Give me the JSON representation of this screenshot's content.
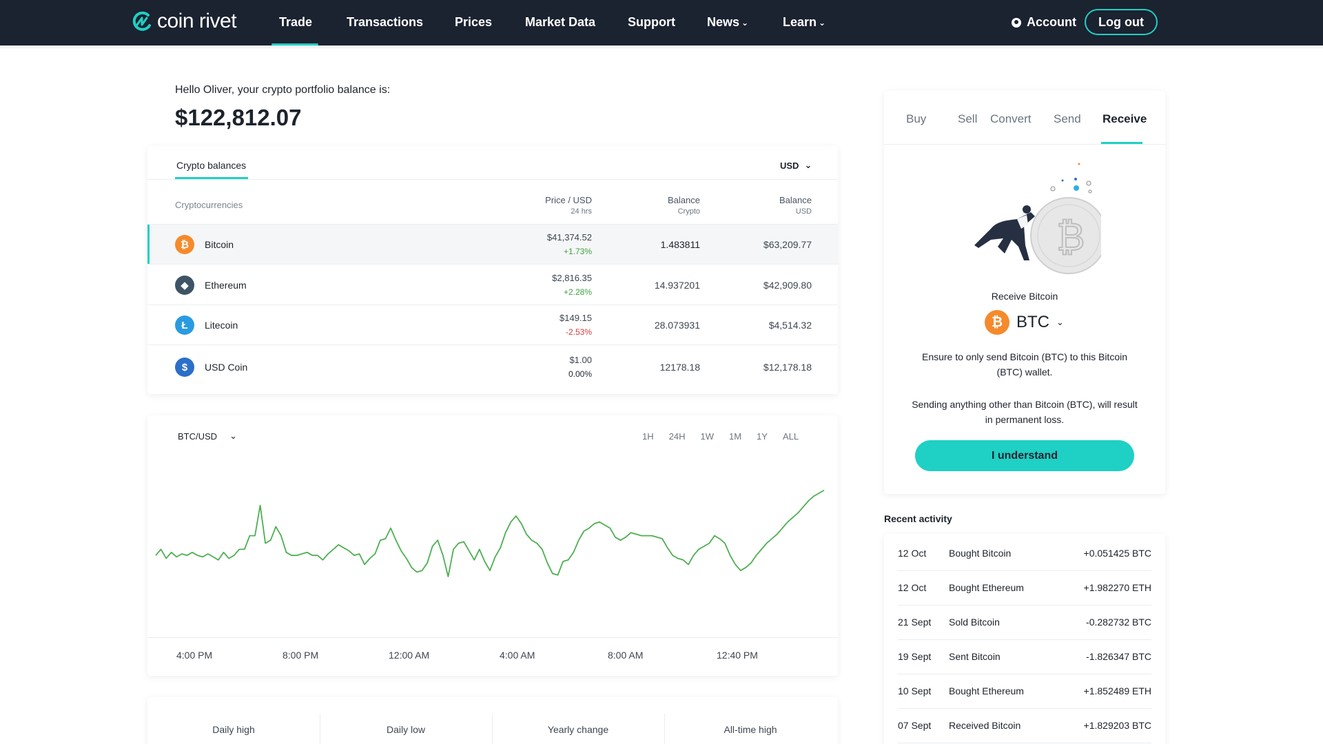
{
  "brand": {
    "name": "coin rivet",
    "accent": "#1fd0c4",
    "nav_bg": "#1b2230"
  },
  "nav": {
    "items": [
      {
        "label": "Trade",
        "active": true
      },
      {
        "label": "Transactions"
      },
      {
        "label": "Prices"
      },
      {
        "label": "Market Data"
      },
      {
        "label": "Support"
      },
      {
        "label": "News",
        "dropdown": true
      },
      {
        "label": "Learn",
        "dropdown": true
      }
    ],
    "account_label": "Account",
    "account_icon": "user-circle-icon",
    "logout_label": "Log out"
  },
  "portfolio": {
    "greeting": "Hello Oliver, your crypto portfolio balance is:",
    "total": "$122,812.07"
  },
  "balances": {
    "tab_label": "Crypto balances",
    "currency": "USD",
    "headers": {
      "name": "Cryptocurrencies",
      "price": "Price / USD",
      "price_sub": "24 hrs",
      "crypto": "Balance",
      "crypto_sub": "Crypto",
      "usd": "Balance",
      "usd_sub": "USD"
    },
    "rows": [
      {
        "name": "Bitcoin",
        "icon": "bitcoin-icon",
        "icon_glyph": "₿",
        "color": "#f58a2c",
        "price": "$41,374.52",
        "change": "+1.73%",
        "change_dir": "up",
        "balance_crypto": "1.483811",
        "balance_usd": "$63,209.77",
        "selected": true
      },
      {
        "name": "Ethereum",
        "icon": "ethereum-icon",
        "icon_glyph": "◆",
        "color": "#3d5466",
        "price": "$2,816.35",
        "change": "+2.28%",
        "change_dir": "up",
        "balance_crypto": "14.937201",
        "balance_usd": "$42,909.80"
      },
      {
        "name": "Litecoin",
        "icon": "litecoin-icon",
        "icon_glyph": "Ł",
        "color": "#2a9be0",
        "price": "$149.15",
        "change": "-2.53%",
        "change_dir": "down",
        "balance_crypto": "28.073931",
        "balance_usd": "$4,514.32"
      },
      {
        "name": "USD Coin",
        "icon": "usd-coin-icon",
        "icon_glyph": "$",
        "color": "#2c6fc9",
        "price": "$1.00",
        "change": "0.00%",
        "change_dir": "flat",
        "balance_crypto": "12178.18",
        "balance_usd": "$12,178.18"
      }
    ]
  },
  "chart": {
    "pair": "BTC/USD",
    "ranges": [
      "1H",
      "24H",
      "1W",
      "1M",
      "1Y",
      "ALL"
    ],
    "line_color": "#4caf50",
    "x_labels": [
      "4:00 PM",
      "8:00 PM",
      "12:00 AM",
      "4:00 AM",
      "8:00 AM",
      "12:40 PM"
    ]
  },
  "chart_data": {
    "type": "line",
    "series": [
      {
        "values": [
          0.44,
          0.48,
          0.42,
          0.46,
          0.43,
          0.45,
          0.44,
          0.46,
          0.44,
          0.43,
          0.45,
          0.43,
          0.41,
          0.46,
          0.42,
          0.44,
          0.48,
          0.48,
          0.57,
          0.57,
          0.77,
          0.52,
          0.54,
          0.63,
          0.57,
          0.46,
          0.44,
          0.44,
          0.45,
          0.46,
          0.44,
          0.44,
          0.41,
          0.45,
          0.48,
          0.51,
          0.49,
          0.47,
          0.44,
          0.45,
          0.38,
          0.42,
          0.45,
          0.54,
          0.55,
          0.62,
          0.54,
          0.47,
          0.42,
          0.36,
          0.33,
          0.34,
          0.39,
          0.5,
          0.54,
          0.44,
          0.3,
          0.48,
          0.52,
          0.53,
          0.47,
          0.41,
          0.48,
          0.4,
          0.34,
          0.43,
          0.49,
          0.59,
          0.66,
          0.7,
          0.65,
          0.58,
          0.54,
          0.52,
          0.48,
          0.39,
          0.32,
          0.31,
          0.4,
          0.41,
          0.46,
          0.54,
          0.6,
          0.62,
          0.65,
          0.66,
          0.64,
          0.62,
          0.56,
          0.54,
          0.56,
          0.59,
          0.58,
          0.57,
          0.57,
          0.57,
          0.56,
          0.55,
          0.49,
          0.44,
          0.42,
          0.41,
          0.38,
          0.44,
          0.48,
          0.5,
          0.52,
          0.57,
          0.55,
          0.52,
          0.44,
          0.38,
          0.34,
          0.36,
          0.39,
          0.44,
          0.48,
          0.52,
          0.55,
          0.58,
          0.62,
          0.66,
          0.69,
          0.72,
          0.76,
          0.8,
          0.83,
          0.85,
          0.87
        ]
      }
    ],
    "ylim": [
      0,
      1
    ],
    "xlabel": "",
    "ylabel": "",
    "x_tick_labels": [
      "4:00 PM",
      "8:00 PM",
      "12:00 AM",
      "4:00 AM",
      "8:00 AM",
      "12:40 PM"
    ],
    "grid": false
  },
  "stats": [
    {
      "label": "Daily high",
      "value": ""
    },
    {
      "label": "Daily low",
      "value": ""
    },
    {
      "label": "Yearly change",
      "value": ""
    },
    {
      "label": "All-time high",
      "value": ""
    }
  ],
  "trade_panel": {
    "tabs": [
      {
        "label": "Buy"
      },
      {
        "label": "Sell"
      },
      {
        "label": "Convert"
      },
      {
        "label": "Send"
      },
      {
        "label": "Receive",
        "active": true
      }
    ],
    "receive_title": "Receive Bitcoin",
    "coin_code": "BTC",
    "coin_icon": "bitcoin-icon",
    "notice_1": "Ensure to only send Bitcoin (BTC) to this Bitcoin (BTC) wallet.",
    "notice_2": "Sending anything other than Bitcoin (BTC), will result in permanent loss.",
    "button_label": "I understand"
  },
  "activity": {
    "title": "Recent activity",
    "items": [
      {
        "date": "12 Oct",
        "desc": "Bought Bitcoin",
        "amount": "+0.051425 BTC"
      },
      {
        "date": "12 Oct",
        "desc": "Bought Ethereum",
        "amount": "+1.982270 ETH"
      },
      {
        "date": "21 Sept",
        "desc": "Sold Bitcoin",
        "amount": "-0.282732 BTC"
      },
      {
        "date": "19 Sept",
        "desc": "Sent Bitcoin",
        "amount": "-1.826347 BTC"
      },
      {
        "date": "10 Sept",
        "desc": "Bought Ethereum",
        "amount": "+1.852489 ETH"
      },
      {
        "date": "07 Sept",
        "desc": "Received Bitcoin",
        "amount": "+1.829203 BTC"
      }
    ]
  }
}
